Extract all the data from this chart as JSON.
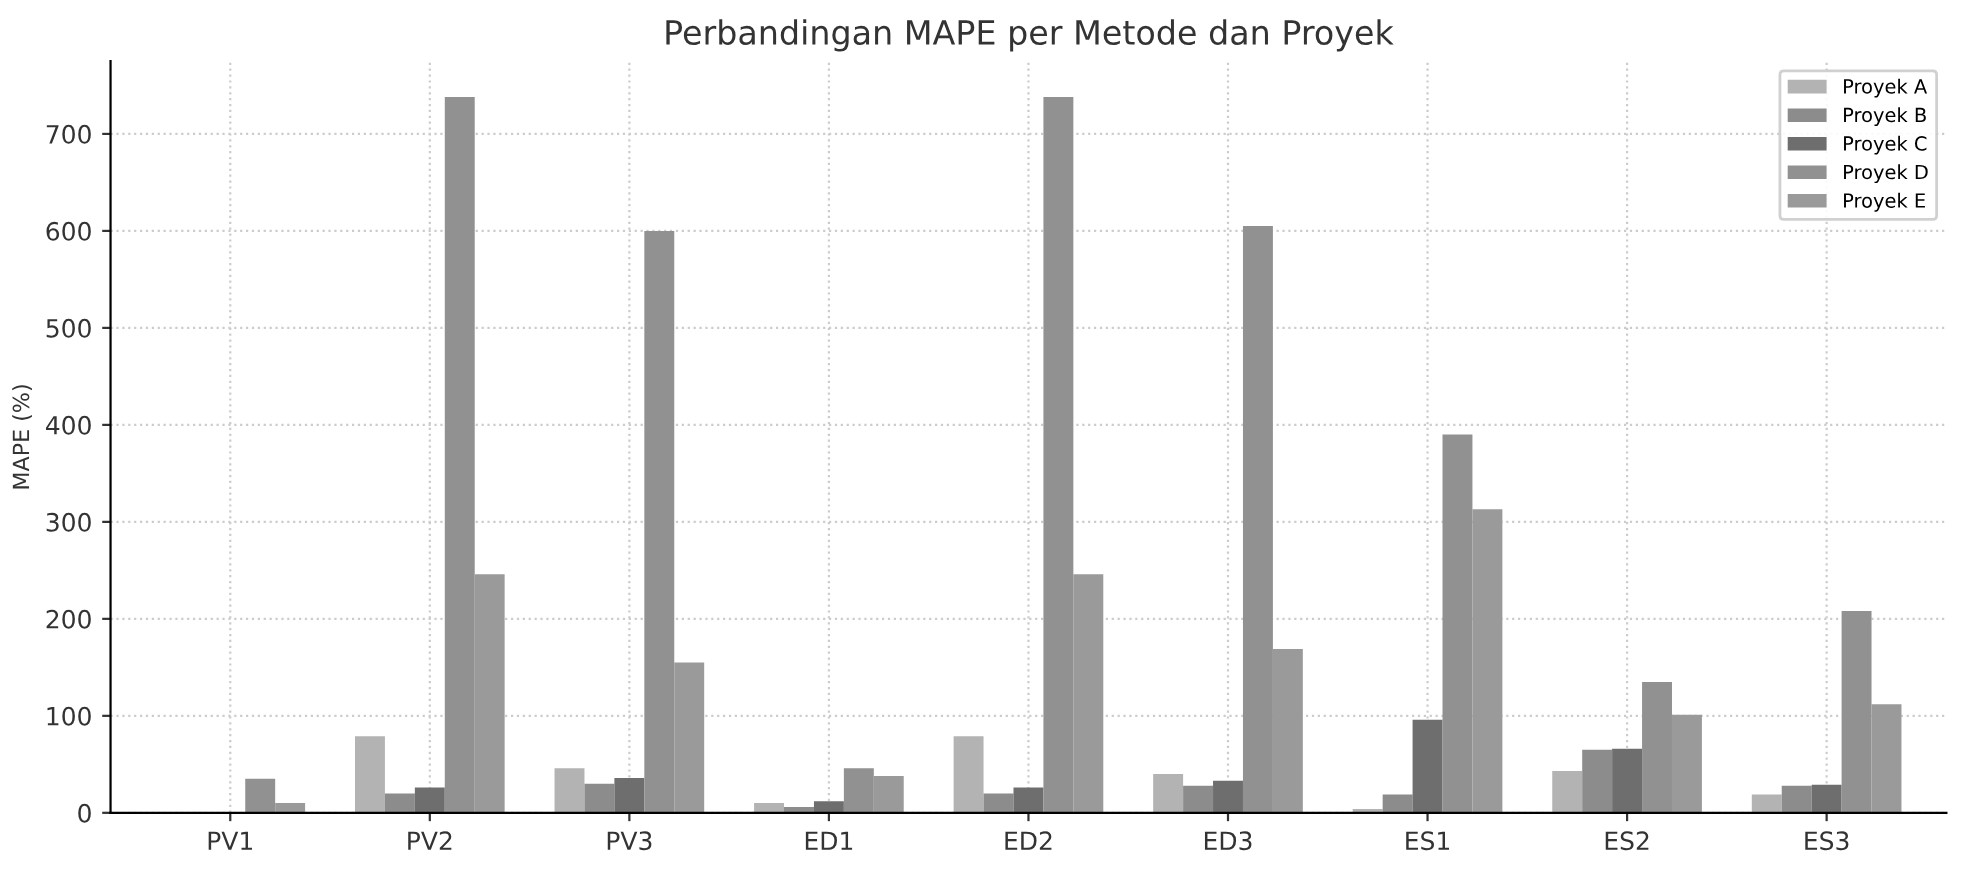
{
  "chart_data": {
    "type": "bar",
    "title": "Perbandingan MAPE per Metode dan Proyek",
    "ylabel": "MAPE (%)",
    "categories": [
      "PV1",
      "PV2",
      "PV3",
      "ED1",
      "ED2",
      "ED3",
      "ES1",
      "ES2",
      "ES3"
    ],
    "series": [
      {
        "name": "Proyek A",
        "color": "#b3b3b3",
        "values": [
          0,
          79,
          46,
          10,
          79,
          40,
          4,
          43,
          19
        ]
      },
      {
        "name": "Proyek B",
        "color": "#8c8c8c",
        "values": [
          0,
          20,
          30,
          6,
          20,
          28,
          19,
          65,
          28
        ]
      },
      {
        "name": "Proyek C",
        "color": "#6e6e6e",
        "values": [
          0,
          26,
          36,
          12,
          26,
          33,
          96,
          66,
          29
        ]
      },
      {
        "name": "Proyek D",
        "color": "#919191",
        "values": [
          35,
          738,
          600,
          46,
          738,
          605,
          390,
          135,
          208
        ]
      },
      {
        "name": "Proyek E",
        "color": "#9a9a9a",
        "values": [
          10,
          246,
          155,
          38,
          246,
          169,
          313,
          101,
          112
        ]
      }
    ],
    "ylim": [
      0,
      775
    ],
    "yticks": [
      0,
      100,
      200,
      300,
      400,
      500,
      600,
      700
    ],
    "grid": true,
    "legend": "top right"
  }
}
